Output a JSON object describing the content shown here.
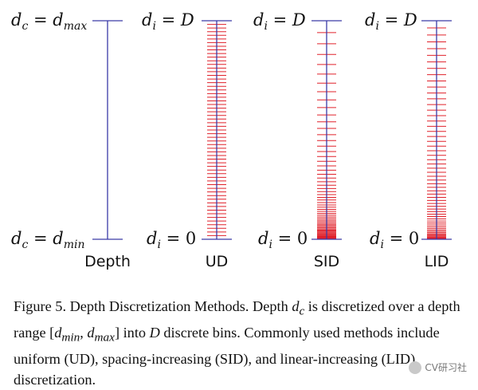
{
  "diagram": {
    "columns": [
      {
        "id": "depth",
        "name": "Depth",
        "top": {
          "var": "d",
          "sub": "c",
          "rhs": "d",
          "rhs_sub": "max"
        },
        "bottom": {
          "var": "d",
          "sub": "c",
          "rhs": "d",
          "rhs_sub": "min"
        },
        "bins": 0,
        "method": "none"
      },
      {
        "id": "ud",
        "name": "UD",
        "top": {
          "var": "d",
          "sub": "i",
          "rhs": "D"
        },
        "bottom": {
          "var": "d",
          "sub": "i",
          "rhs": "0"
        },
        "bins": 60,
        "method": "uniform"
      },
      {
        "id": "sid",
        "name": "SID",
        "top": {
          "var": "d",
          "sub": "i",
          "rhs": "D"
        },
        "bottom": {
          "var": "d",
          "sub": "i",
          "rhs": "0"
        },
        "bins": 60,
        "method": "spacing-increasing"
      },
      {
        "id": "lid",
        "name": "LID",
        "top": {
          "var": "d",
          "sub": "i",
          "rhs": "D"
        },
        "bottom": {
          "var": "d",
          "sub": "i",
          "rhs": "0"
        },
        "bins": 60,
        "method": "linear-increasing"
      }
    ],
    "colors": {
      "axis": "#3a3aa8",
      "bin": "#e0202a"
    }
  },
  "caption": {
    "part1": "Figure 5. Depth Discretization Methods. Depth ",
    "dc_var": "d",
    "dc_sub": "c",
    "part2": " is discretized over a depth range ",
    "range_open": "[",
    "range_min_var": "d",
    "range_min_sub": "min",
    "range_sep": ", ",
    "range_max_var": "d",
    "range_max_sub": "max",
    "range_close": "]",
    "part3": " into ",
    "D": "D",
    "part4": " discrete bins. Commonly used methods include uniform (UD), spacing-increasing (SID), and linear-increasing (LID) discretization."
  },
  "watermark": {
    "text": "CV研习社",
    "icon": "wechat-icon"
  }
}
